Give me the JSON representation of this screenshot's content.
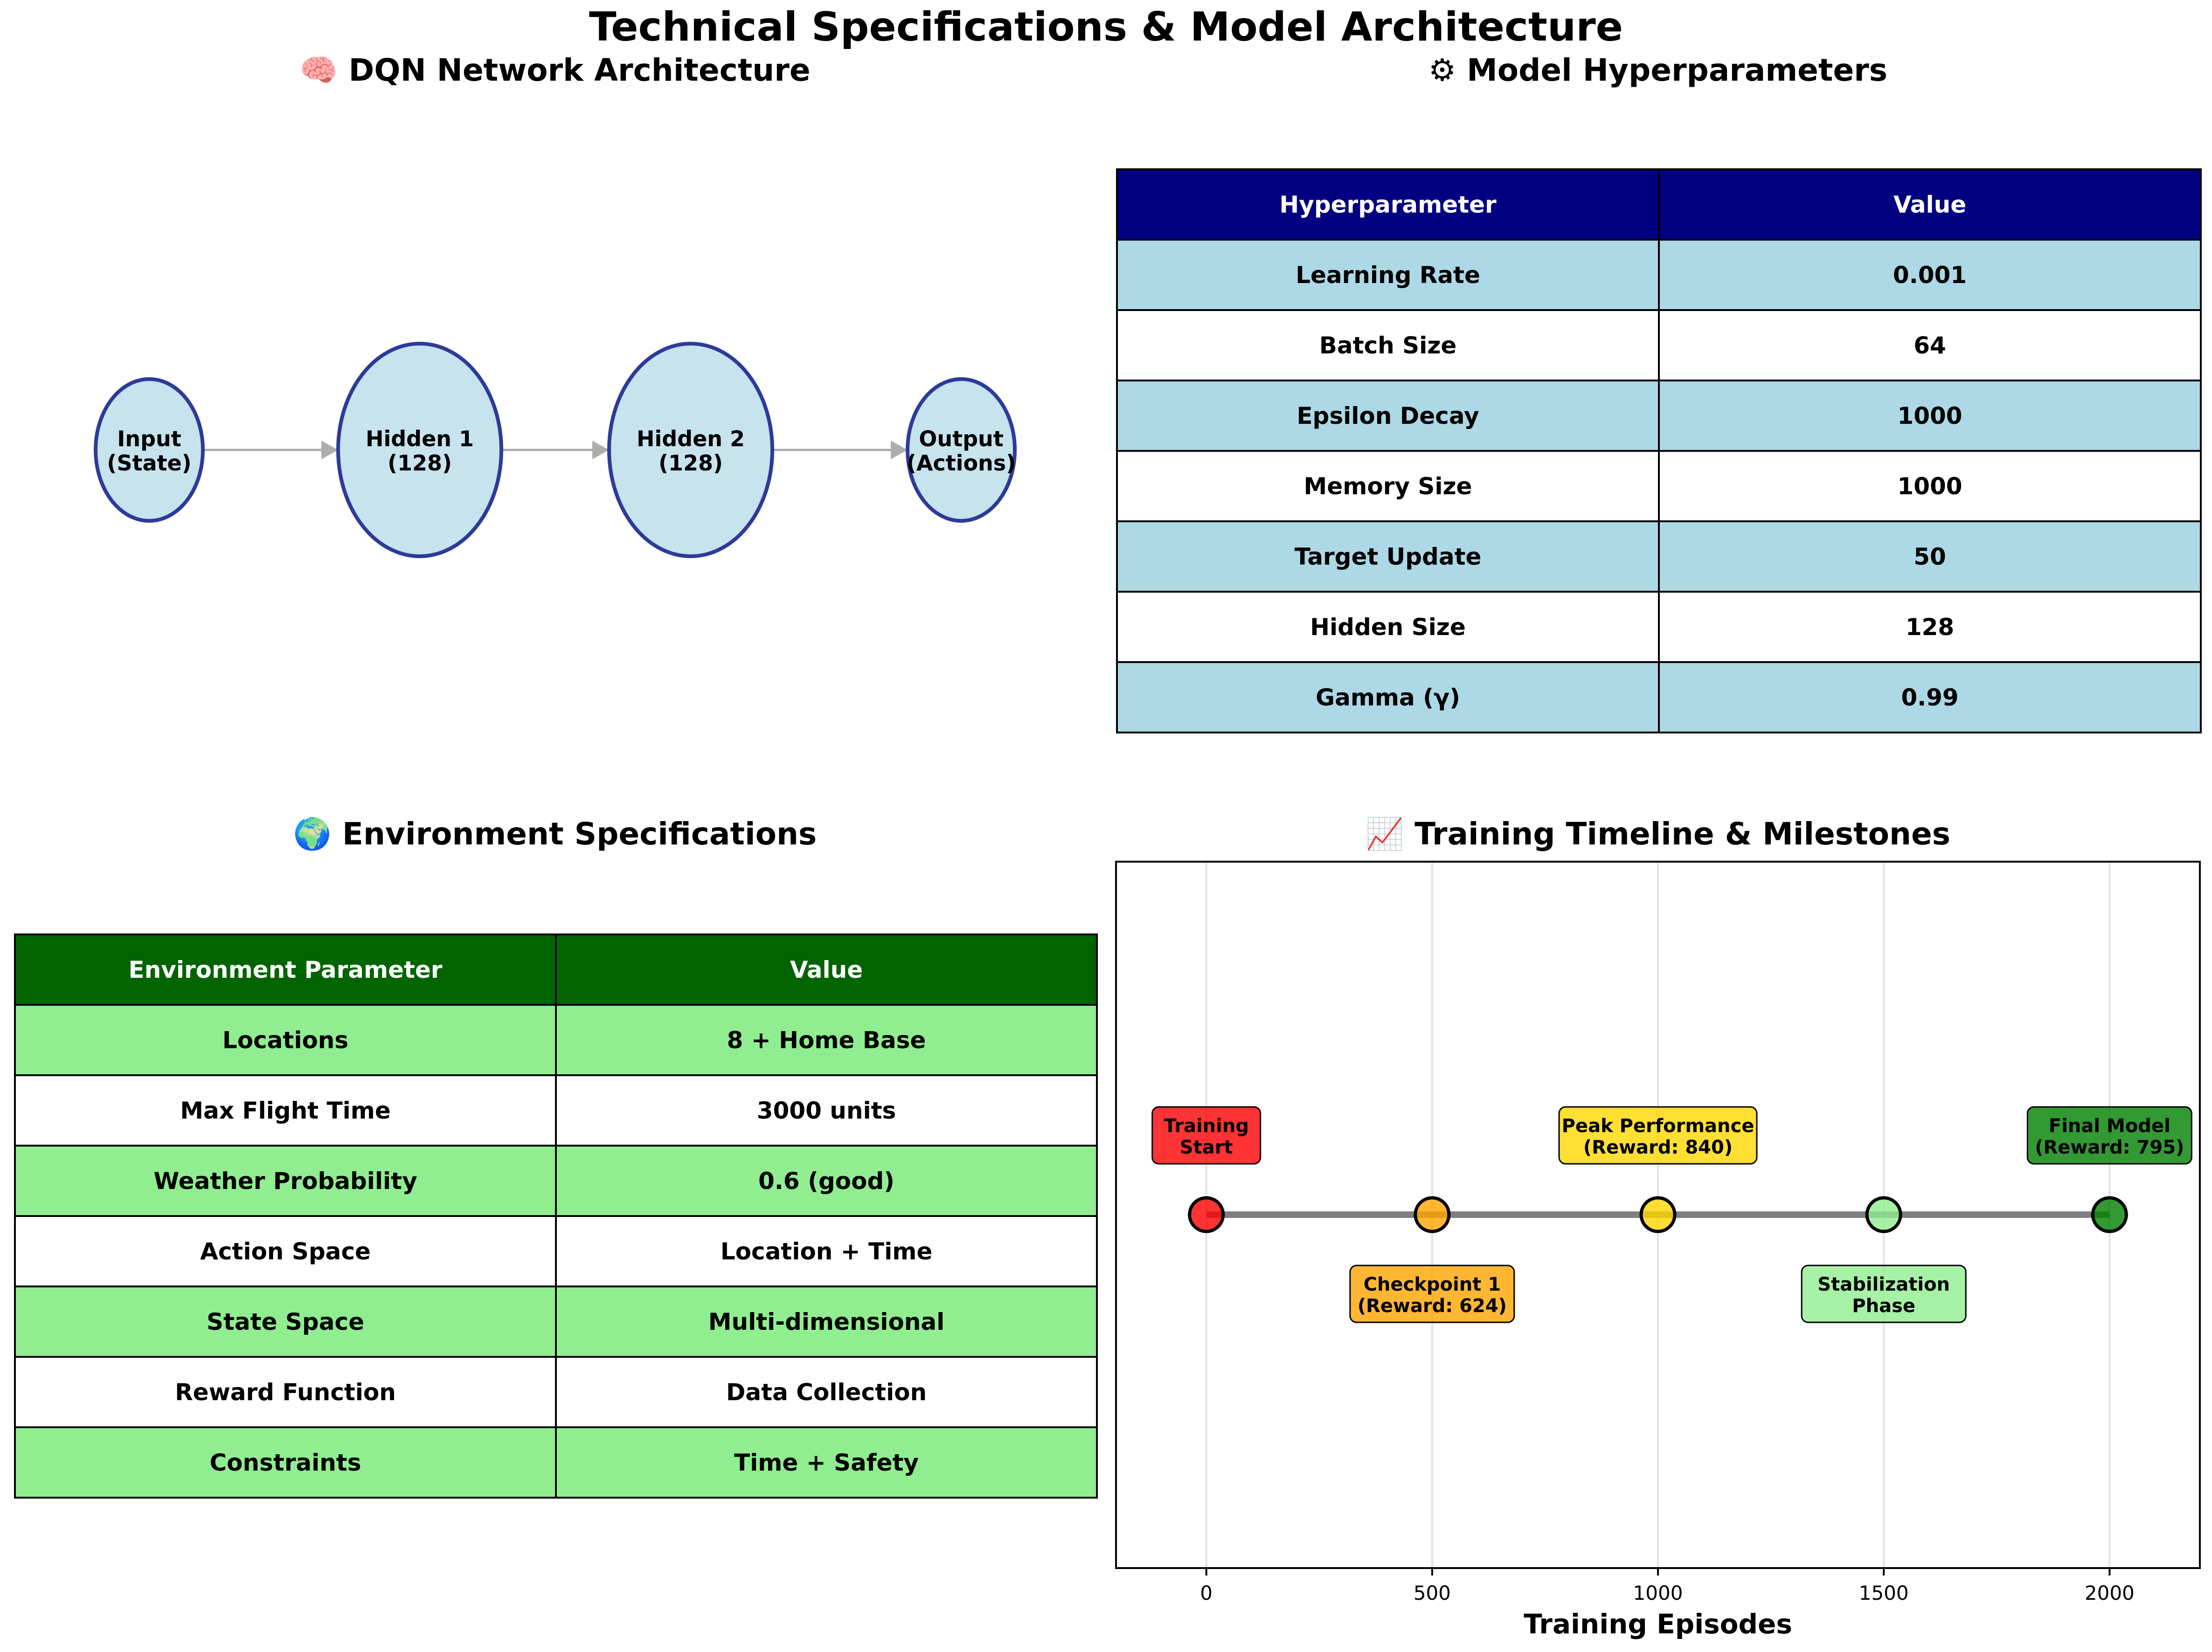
{
  "figure": {
    "title": "Technical Specifications & Model Architecture"
  },
  "network": {
    "title": "🧠 DQN Network Architecture",
    "layers": [
      {
        "label": "Input\n(State)"
      },
      {
        "label": "Hidden 1\n(128)"
      },
      {
        "label": "Hidden 2\n(128)"
      },
      {
        "label": "Output\n(Actions)"
      }
    ]
  },
  "hyperparams": {
    "title": "⚙ Model Hyperparameters",
    "header_color": "#000080",
    "row_color": "#add8e6",
    "columns": [
      "Hyperparameter",
      "Value"
    ],
    "rows": [
      [
        "Learning Rate",
        "0.001"
      ],
      [
        "Batch Size",
        "64"
      ],
      [
        "Epsilon Decay",
        "1000"
      ],
      [
        "Memory Size",
        "1000"
      ],
      [
        "Target Update",
        "50"
      ],
      [
        "Hidden Size",
        "128"
      ],
      [
        "Gamma (γ)",
        "0.99"
      ]
    ]
  },
  "environment": {
    "title": "🌍 Environment Specifications",
    "header_color": "#006400",
    "row_color": "#90ee90",
    "columns": [
      "Environment Parameter",
      "Value"
    ],
    "rows": [
      [
        "Locations",
        "8 + Home Base"
      ],
      [
        "Max Flight Time",
        "3000 units"
      ],
      [
        "Weather Probability",
        "0.6 (good)"
      ],
      [
        "Action Space",
        "Location + Time"
      ],
      [
        "State Space",
        "Multi-dimensional"
      ],
      [
        "Reward Function",
        "Data Collection"
      ],
      [
        "Constraints",
        "Time + Safety"
      ]
    ]
  },
  "chart_data": {
    "type": "scatter",
    "title": "📈 Training Timeline & Milestones",
    "xlabel": "Training Episodes",
    "ylabel": "",
    "xlim": [
      -200,
      2200
    ],
    "xticks": [
      0,
      500,
      1000,
      1500,
      2000
    ],
    "grid": "x",
    "points": [
      {
        "x": 0,
        "label": "Training\nStart",
        "color": "#ff0000",
        "label_pos": "above"
      },
      {
        "x": 500,
        "label": "Checkpoint 1\n(Reward: 624)",
        "color": "#ffa500",
        "label_pos": "below"
      },
      {
        "x": 1000,
        "label": "Peak Performance\n(Reward: 840)",
        "color": "#ffd700",
        "label_pos": "above"
      },
      {
        "x": 1500,
        "label": "Stabilization\nPhase",
        "color": "#90ee90",
        "label_pos": "below"
      },
      {
        "x": 2000,
        "label": "Final Model\n(Reward: 795)",
        "color": "#008000",
        "label_pos": "above"
      }
    ]
  }
}
